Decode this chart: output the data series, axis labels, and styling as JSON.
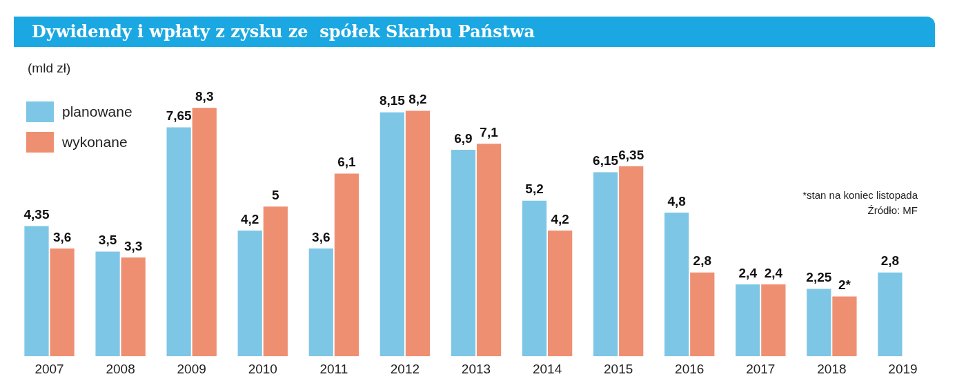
{
  "chart_data": {
    "type": "bar",
    "title": "Dywidendy i wpłaty z zysku ze  spółek Skarbu Państwa",
    "ylabel": "(mld zł)",
    "categories": [
      "2007",
      "2008",
      "2009",
      "2010",
      "2011",
      "2012",
      "2013",
      "2014",
      "2015",
      "2016",
      "2017",
      "2018",
      "2019"
    ],
    "series": [
      {
        "name": "planowane",
        "color": "#7ec6e6",
        "values": [
          4.35,
          3.5,
          7.65,
          4.2,
          3.6,
          8.15,
          6.9,
          5.2,
          6.15,
          4.8,
          2.4,
          2.25,
          2.8
        ],
        "value_labels": [
          "4,35",
          "3,5",
          "7,65",
          "4,2",
          "3,6",
          "8,15",
          "6,9",
          "5,2",
          "6,15",
          "4,8",
          "2,4",
          "2,25",
          "2,8"
        ]
      },
      {
        "name": "wykonane",
        "color": "#ef8f72",
        "values": [
          3.6,
          3.3,
          8.3,
          5,
          6.1,
          8.2,
          7.1,
          4.2,
          6.35,
          2.8,
          2.4,
          2,
          null
        ],
        "value_labels": [
          "3,6",
          "3,3",
          "8,3",
          "5",
          "6,1",
          "8,2",
          "7,1",
          "4,2",
          "6,35",
          "2,8",
          "2,4",
          "2*",
          null
        ]
      }
    ],
    "legend": "top left",
    "grid": false,
    "annotations": [
      "*stan na koniec listopada",
      "Źródło: MF"
    ]
  }
}
